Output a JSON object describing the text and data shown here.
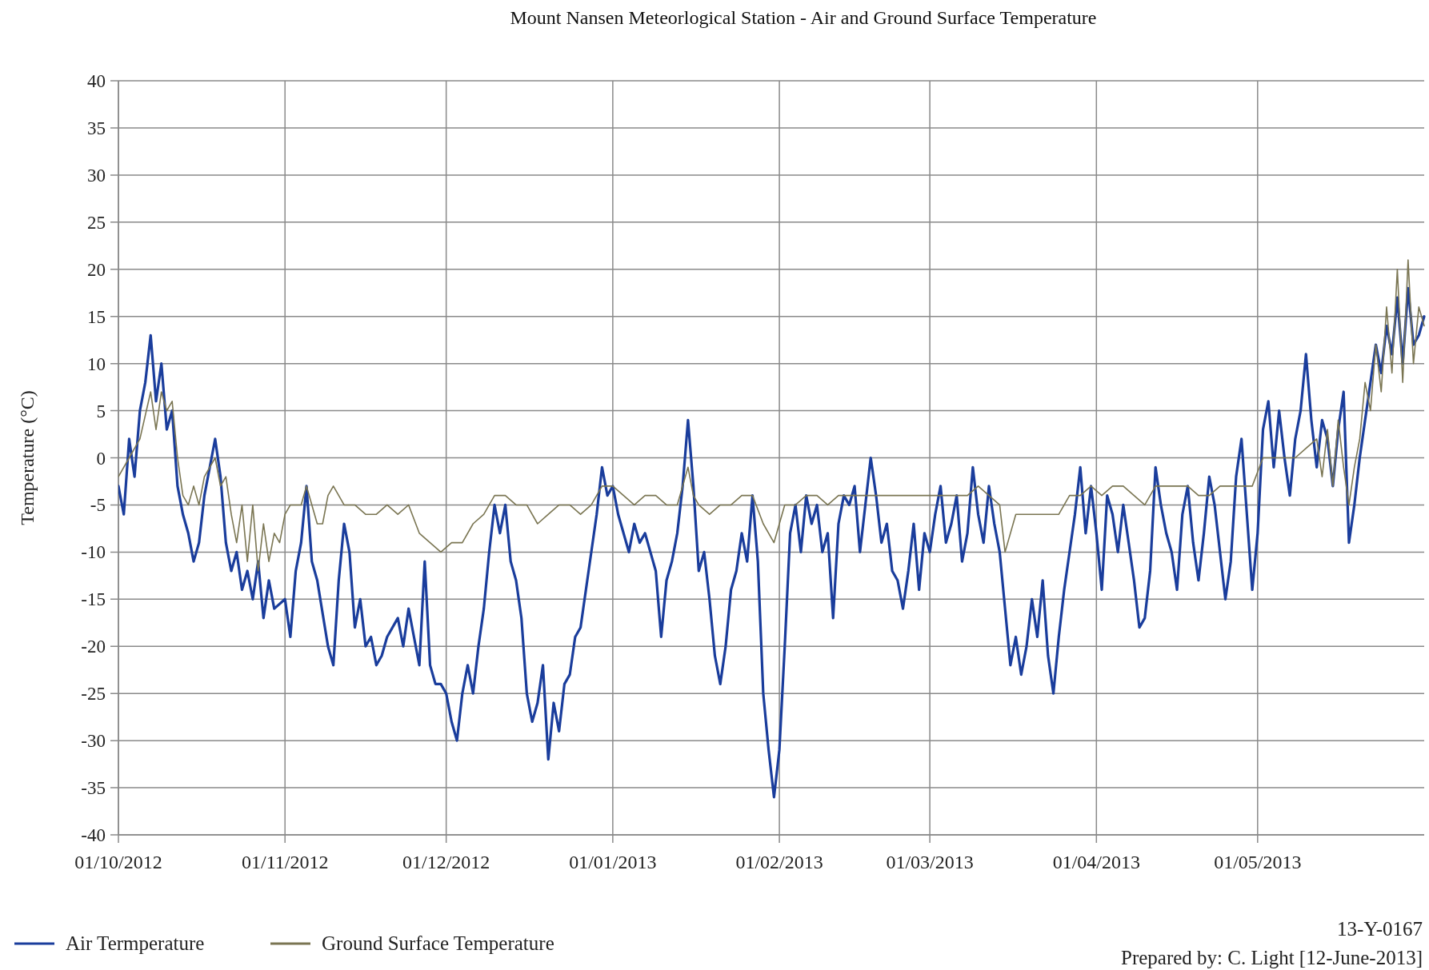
{
  "chart_data": {
    "type": "line",
    "title": "Mount Nansen Meteorlogical Station - Air and Ground Surface Temperature",
    "ylabel": "Temperature (°C)",
    "xlim": [
      "2012-10-01",
      "2013-06-01"
    ],
    "xticks": [
      {
        "value": "2012-10-01",
        "label": "01/10/2012"
      },
      {
        "value": "2012-11-01",
        "label": "01/11/2012"
      },
      {
        "value": "2012-12-01",
        "label": "01/12/2012"
      },
      {
        "value": "2013-01-01",
        "label": "01/01/2013"
      },
      {
        "value": "2013-02-01",
        "label": "01/02/2013"
      },
      {
        "value": "2013-03-01",
        "label": "01/03/2013"
      },
      {
        "value": "2013-04-01",
        "label": "01/04/2013"
      },
      {
        "value": "2013-05-01",
        "label": "01/05/2013"
      }
    ],
    "ylim": [
      -40,
      40
    ],
    "yticks": [
      -40,
      -35,
      -30,
      -25,
      -20,
      -15,
      -10,
      -5,
      0,
      5,
      10,
      15,
      20,
      25,
      30,
      35,
      40
    ],
    "grid": true,
    "legend": "bottom",
    "line_style": "solid",
    "annotations": [
      "13-Y-0167",
      "Prepared by: C. Light [12-June-2013]"
    ],
    "series": [
      {
        "name": "Air Termperature",
        "color": "#1a3d9c",
        "x": [
          "2012-10-01",
          "2012-10-02",
          "2012-10-03",
          "2012-10-04",
          "2012-10-05",
          "2012-10-06",
          "2012-10-07",
          "2012-10-08",
          "2012-10-09",
          "2012-10-10",
          "2012-10-11",
          "2012-10-12",
          "2012-10-13",
          "2012-10-14",
          "2012-10-15",
          "2012-10-16",
          "2012-10-17",
          "2012-10-19",
          "2012-10-20",
          "2012-10-21",
          "2012-10-22",
          "2012-10-23",
          "2012-10-24",
          "2012-10-25",
          "2012-10-26",
          "2012-10-27",
          "2012-10-28",
          "2012-10-29",
          "2012-10-30",
          "2012-11-01",
          "2012-11-02",
          "2012-11-03",
          "2012-11-04",
          "2012-11-05",
          "2012-11-06",
          "2012-11-07",
          "2012-11-09",
          "2012-11-10",
          "2012-11-11",
          "2012-11-12",
          "2012-11-13",
          "2012-11-14",
          "2012-11-15",
          "2012-11-16",
          "2012-11-17",
          "2012-11-18",
          "2012-11-19",
          "2012-11-20",
          "2012-11-22",
          "2012-11-23",
          "2012-11-24",
          "2012-11-25",
          "2012-11-26",
          "2012-11-27",
          "2012-11-28",
          "2012-11-29",
          "2012-11-30",
          "2012-12-01",
          "2012-12-02",
          "2012-12-03",
          "2012-12-04",
          "2012-12-05",
          "2012-12-06",
          "2012-12-07",
          "2012-12-08",
          "2012-12-09",
          "2012-12-10",
          "2012-12-11",
          "2012-12-12",
          "2012-12-13",
          "2012-12-14",
          "2012-12-15",
          "2012-12-16",
          "2012-12-17",
          "2012-12-18",
          "2012-12-19",
          "2012-12-20",
          "2012-12-21",
          "2012-12-22",
          "2012-12-23",
          "2012-12-24",
          "2012-12-25",
          "2012-12-26",
          "2012-12-27",
          "2012-12-28",
          "2012-12-29",
          "2012-12-30",
          "2012-12-31",
          "2013-01-01",
          "2013-01-02",
          "2013-01-03",
          "2013-01-04",
          "2013-01-05",
          "2013-01-06",
          "2013-01-07",
          "2013-01-08",
          "2013-01-09",
          "2013-01-10",
          "2013-01-11",
          "2013-01-12",
          "2013-01-13",
          "2013-01-14",
          "2013-01-15",
          "2013-01-16",
          "2013-01-17",
          "2013-01-18",
          "2013-01-19",
          "2013-01-20",
          "2013-01-21",
          "2013-01-22",
          "2013-01-23",
          "2013-01-24",
          "2013-01-25",
          "2013-01-26",
          "2013-01-27",
          "2013-01-28",
          "2013-01-29",
          "2013-01-30",
          "2013-01-31",
          "2013-02-01",
          "2013-02-02",
          "2013-02-03",
          "2013-02-04",
          "2013-02-05",
          "2013-02-06",
          "2013-02-07",
          "2013-02-08",
          "2013-02-09",
          "2013-02-10",
          "2013-02-11",
          "2013-02-12",
          "2013-02-13",
          "2013-02-14",
          "2013-02-15",
          "2013-02-16",
          "2013-02-17",
          "2013-02-18",
          "2013-02-19",
          "2013-02-20",
          "2013-02-21",
          "2013-02-22",
          "2013-02-23",
          "2013-02-24",
          "2013-02-25",
          "2013-02-26",
          "2013-02-27",
          "2013-02-28",
          "2013-03-01",
          "2013-03-02",
          "2013-03-03",
          "2013-03-04",
          "2013-03-05",
          "2013-03-06",
          "2013-03-07",
          "2013-03-08",
          "2013-03-09",
          "2013-03-10",
          "2013-03-11",
          "2013-03-12",
          "2013-03-13",
          "2013-03-14",
          "2013-03-15",
          "2013-03-16",
          "2013-03-17",
          "2013-03-18",
          "2013-03-19",
          "2013-03-20",
          "2013-03-21",
          "2013-03-22",
          "2013-03-23",
          "2013-03-24",
          "2013-03-25",
          "2013-03-26",
          "2013-03-27",
          "2013-03-28",
          "2013-03-29",
          "2013-03-30",
          "2013-03-31",
          "2013-04-01",
          "2013-04-02",
          "2013-04-03",
          "2013-04-04",
          "2013-04-05",
          "2013-04-06",
          "2013-04-07",
          "2013-04-08",
          "2013-04-09",
          "2013-04-10",
          "2013-04-11",
          "2013-04-12",
          "2013-04-13",
          "2013-04-14",
          "2013-04-15",
          "2013-04-16",
          "2013-04-17",
          "2013-04-18",
          "2013-04-19",
          "2013-04-20",
          "2013-04-21",
          "2013-04-22",
          "2013-04-23",
          "2013-04-24",
          "2013-04-25",
          "2013-04-26",
          "2013-04-27",
          "2013-04-28",
          "2013-04-29",
          "2013-04-30",
          "2013-05-01",
          "2013-05-02",
          "2013-05-03",
          "2013-05-04",
          "2013-05-05",
          "2013-05-06",
          "2013-05-07",
          "2013-05-08",
          "2013-05-09",
          "2013-05-10",
          "2013-05-11",
          "2013-05-12",
          "2013-05-13",
          "2013-05-14",
          "2013-05-15",
          "2013-05-16",
          "2013-05-17",
          "2013-05-18",
          "2013-05-19",
          "2013-05-20",
          "2013-05-21",
          "2013-05-22",
          "2013-05-23",
          "2013-05-24",
          "2013-05-25",
          "2013-05-26",
          "2013-05-27",
          "2013-05-28",
          "2013-05-29",
          "2013-05-30",
          "2013-05-31",
          "2013-06-01"
        ],
        "values": [
          -3,
          -6,
          2,
          -2,
          5,
          8,
          13,
          6,
          10,
          3,
          5,
          -3,
          -6,
          -8,
          -11,
          -9,
          -4,
          2,
          -2,
          -9,
          -12,
          -10,
          -14,
          -12,
          -15,
          -11,
          -17,
          -13,
          -16,
          -15,
          -19,
          -12,
          -9,
          -3,
          -11,
          -13,
          -20,
          -22,
          -13,
          -7,
          -10,
          -18,
          -15,
          -20,
          -19,
          -22,
          -21,
          -19,
          -17,
          -20,
          -16,
          -19,
          -22,
          -11,
          -22,
          -24,
          -24,
          -25,
          -28,
          -30,
          -25,
          -22,
          -25,
          -20,
          -16,
          -10,
          -5,
          -8,
          -5,
          -11,
          -13,
          -17,
          -25,
          -28,
          -26,
          -22,
          -32,
          -26,
          -29,
          -24,
          -23,
          -19,
          -18,
          -14,
          -10,
          -6,
          -1,
          -4,
          -3,
          -6,
          -8,
          -10,
          -7,
          -9,
          -8,
          -10,
          -12,
          -19,
          -13,
          -11,
          -8,
          -3,
          4,
          -3,
          -12,
          -10,
          -15,
          -21,
          -24,
          -20,
          -14,
          -12,
          -8,
          -11,
          -4,
          -11,
          -25,
          -31,
          -36,
          -31,
          -20,
          -8,
          -5,
          -10,
          -4,
          -7,
          -5,
          -10,
          -8,
          -17,
          -7,
          -4,
          -5,
          -3,
          -10,
          -5,
          0,
          -4,
          -9,
          -7,
          -12,
          -13,
          -16,
          -12,
          -7,
          -14,
          -8,
          -10,
          -6,
          -3,
          -9,
          -7,
          -4,
          -11,
          -8,
          -1,
          -6,
          -9,
          -3,
          -7,
          -10,
          -16,
          -22,
          -19,
          -23,
          -20,
          -15,
          -19,
          -13,
          -21,
          -25,
          -19,
          -14,
          -10,
          -6,
          -1,
          -8,
          -3,
          -8,
          -14,
          -4,
          -6,
          -10,
          -5,
          -9,
          -13,
          -18,
          -17,
          -12,
          -1,
          -5,
          -8,
          -10,
          -14,
          -6,
          -3,
          -9,
          -13,
          -8,
          -2,
          -5,
          -10,
          -15,
          -11,
          -2,
          2,
          -6,
          -14,
          -8,
          3,
          6,
          -1,
          5,
          0,
          -4,
          2,
          5,
          11,
          4,
          -1,
          4,
          2,
          -3,
          3,
          7,
          -9,
          -5,
          0,
          4,
          8,
          12,
          9,
          14,
          11,
          17,
          10,
          18,
          12,
          13,
          15
        ]
      },
      {
        "name": "Ground Surface Temperature",
        "color": "#7a7552",
        "x": [
          "2012-10-01",
          "2012-10-03",
          "2012-10-05",
          "2012-10-07",
          "2012-10-08",
          "2012-10-09",
          "2012-10-10",
          "2012-10-11",
          "2012-10-12",
          "2012-10-13",
          "2012-10-14",
          "2012-10-15",
          "2012-10-16",
          "2012-10-17",
          "2012-10-19",
          "2012-10-20",
          "2012-10-21",
          "2012-10-22",
          "2012-10-23",
          "2012-10-24",
          "2012-10-25",
          "2012-10-26",
          "2012-10-27",
          "2012-10-28",
          "2012-10-29",
          "2012-10-30",
          "2012-10-31",
          "2012-11-01",
          "2012-11-02",
          "2012-11-04",
          "2012-11-05",
          "2012-11-06",
          "2012-11-07",
          "2012-11-08",
          "2012-11-09",
          "2012-11-10",
          "2012-11-12",
          "2012-11-14",
          "2012-11-16",
          "2012-11-18",
          "2012-11-20",
          "2012-11-22",
          "2012-11-24",
          "2012-11-26",
          "2012-11-28",
          "2012-11-30",
          "2012-12-02",
          "2012-12-04",
          "2012-12-06",
          "2012-12-08",
          "2012-12-10",
          "2012-12-12",
          "2012-12-14",
          "2012-12-16",
          "2012-12-18",
          "2012-12-20",
          "2012-12-22",
          "2012-12-24",
          "2012-12-26",
          "2012-12-28",
          "2012-12-30",
          "2013-01-01",
          "2013-01-03",
          "2013-01-05",
          "2013-01-07",
          "2013-01-09",
          "2013-01-11",
          "2013-01-13",
          "2013-01-15",
          "2013-01-16",
          "2013-01-17",
          "2013-01-19",
          "2013-01-21",
          "2013-01-23",
          "2013-01-25",
          "2013-01-27",
          "2013-01-29",
          "2013-01-31",
          "2013-02-02",
          "2013-02-04",
          "2013-02-06",
          "2013-02-08",
          "2013-02-10",
          "2013-02-12",
          "2013-02-14",
          "2013-02-16",
          "2013-02-18",
          "2013-02-20",
          "2013-02-22",
          "2013-02-24",
          "2013-02-26",
          "2013-02-28",
          "2013-03-02",
          "2013-03-04",
          "2013-03-06",
          "2013-03-08",
          "2013-03-10",
          "2013-03-12",
          "2013-03-14",
          "2013-03-15",
          "2013-03-17",
          "2013-03-19",
          "2013-03-21",
          "2013-03-23",
          "2013-03-25",
          "2013-03-27",
          "2013-03-29",
          "2013-03-31",
          "2013-04-02",
          "2013-04-04",
          "2013-04-06",
          "2013-04-08",
          "2013-04-10",
          "2013-04-12",
          "2013-04-14",
          "2013-04-16",
          "2013-04-18",
          "2013-04-20",
          "2013-04-22",
          "2013-04-24",
          "2013-04-26",
          "2013-04-28",
          "2013-04-30",
          "2013-05-02",
          "2013-05-04",
          "2013-05-06",
          "2013-05-08",
          "2013-05-10",
          "2013-05-12",
          "2013-05-13",
          "2013-05-14",
          "2013-05-15",
          "2013-05-16",
          "2013-05-17",
          "2013-05-18",
          "2013-05-19",
          "2013-05-20",
          "2013-05-21",
          "2013-05-22",
          "2013-05-23",
          "2013-05-24",
          "2013-05-25",
          "2013-05-26",
          "2013-05-27",
          "2013-05-28",
          "2013-05-29",
          "2013-05-30",
          "2013-05-31",
          "2013-06-01"
        ],
        "values": [
          -2,
          0,
          2,
          7,
          3,
          7,
          5,
          6,
          0,
          -4,
          -5,
          -3,
          -5,
          -2,
          0,
          -3,
          -2,
          -6,
          -9,
          -5,
          -11,
          -5,
          -12,
          -7,
          -11,
          -8,
          -9,
          -6,
          -5,
          -5,
          -3,
          -5,
          -7,
          -7,
          -4,
          -3,
          -5,
          -5,
          -6,
          -6,
          -5,
          -6,
          -5,
          -8,
          -9,
          -10,
          -9,
          -9,
          -7,
          -6,
          -4,
          -4,
          -5,
          -5,
          -7,
          -6,
          -5,
          -5,
          -6,
          -5,
          -3,
          -3,
          -4,
          -5,
          -4,
          -4,
          -5,
          -5,
          -1,
          -4,
          -5,
          -6,
          -5,
          -5,
          -4,
          -4,
          -7,
          -9,
          -5,
          -5,
          -4,
          -4,
          -5,
          -4,
          -4,
          -4,
          -4,
          -4,
          -4,
          -4,
          -4,
          -4,
          -4,
          -4,
          -4,
          -4,
          -3,
          -4,
          -5,
          -10,
          -6,
          -6,
          -6,
          -6,
          -6,
          -4,
          -4,
          -3,
          -4,
          -3,
          -3,
          -4,
          -5,
          -3,
          -3,
          -3,
          -3,
          -4,
          -4,
          -3,
          -3,
          -3,
          -3,
          0,
          0,
          0,
          0,
          1,
          2,
          -2,
          3,
          -3,
          4,
          -1,
          -5,
          -1,
          2,
          8,
          5,
          12,
          7,
          16,
          9,
          20,
          8,
          21,
          10,
          16,
          14
        ]
      }
    ]
  }
}
